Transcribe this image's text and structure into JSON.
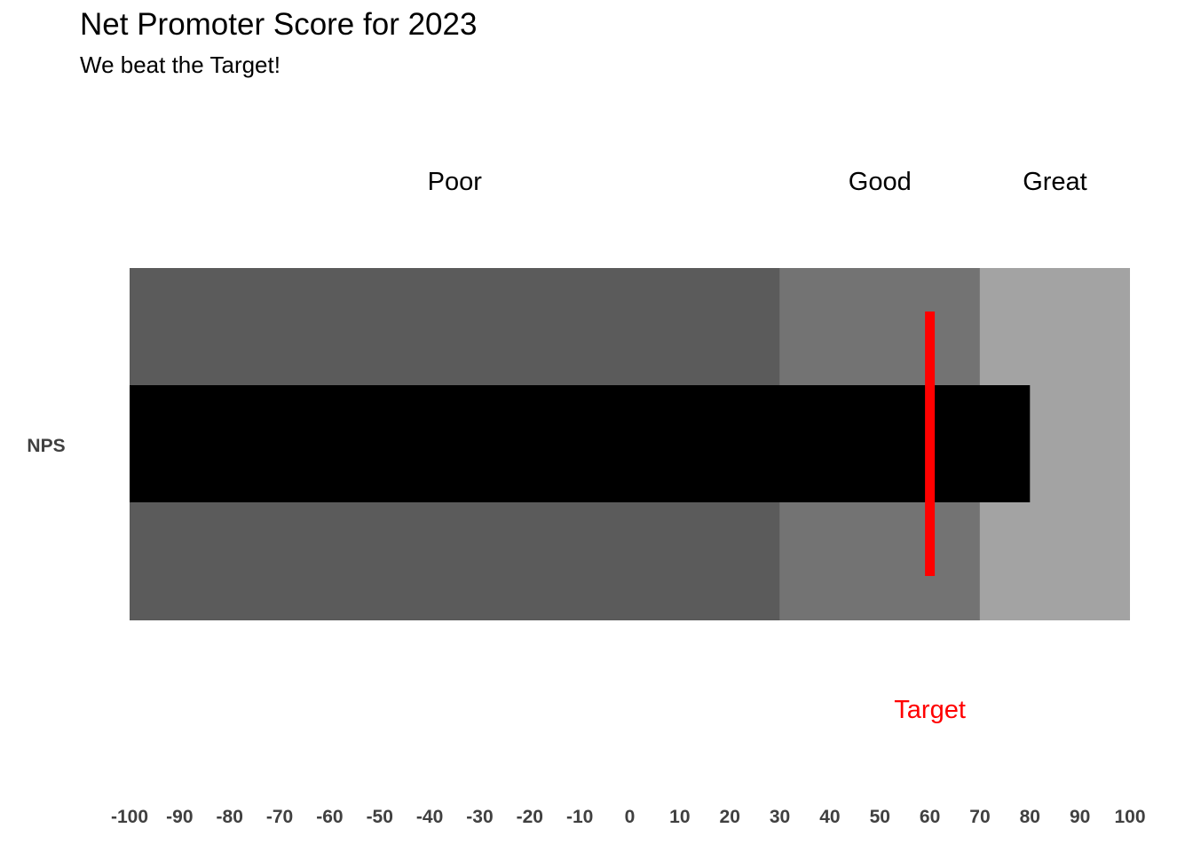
{
  "chart_data": {
    "type": "bullet",
    "title": "Net Promoter Score for 2023",
    "subtitle": "We beat the Target!",
    "category": "NPS",
    "xlim": [
      -100,
      100
    ],
    "ticks": [
      -100,
      -90,
      -80,
      -70,
      -60,
      -50,
      -40,
      -30,
      -20,
      -10,
      0,
      10,
      20,
      30,
      40,
      50,
      60,
      70,
      80,
      90,
      100
    ],
    "ranges": [
      {
        "label": "Poor",
        "from": -100,
        "to": 30,
        "color": "#5b5b5b"
      },
      {
        "label": "Good",
        "from": 30,
        "to": 70,
        "color": "#737373"
      },
      {
        "label": "Great",
        "from": 70,
        "to": 100,
        "color": "#a3a3a3"
      }
    ],
    "value": 80,
    "value_color": "#000000",
    "target": 60,
    "target_label": "Target",
    "target_color": "#ff0000"
  }
}
